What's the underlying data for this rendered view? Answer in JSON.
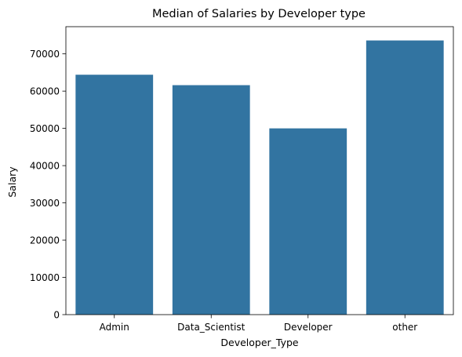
{
  "chart_data": {
    "type": "bar",
    "title": "Median of Salaries by Developer type",
    "xlabel": "Developer_Type",
    "ylabel": "Salary",
    "categories": [
      "Admin",
      "Data_Scientist",
      "Developer",
      "other"
    ],
    "values": [
      64400,
      61600,
      50000,
      73600
    ],
    "ylim": [
      0,
      77300
    ],
    "yticks": [
      0,
      10000,
      20000,
      30000,
      40000,
      50000,
      60000,
      70000
    ],
    "ytick_labels": [
      "0",
      "10000",
      "20000",
      "30000",
      "40000",
      "50000",
      "60000",
      "70000"
    ],
    "bar_color": "#3274a1",
    "grid": false,
    "legend": false
  }
}
